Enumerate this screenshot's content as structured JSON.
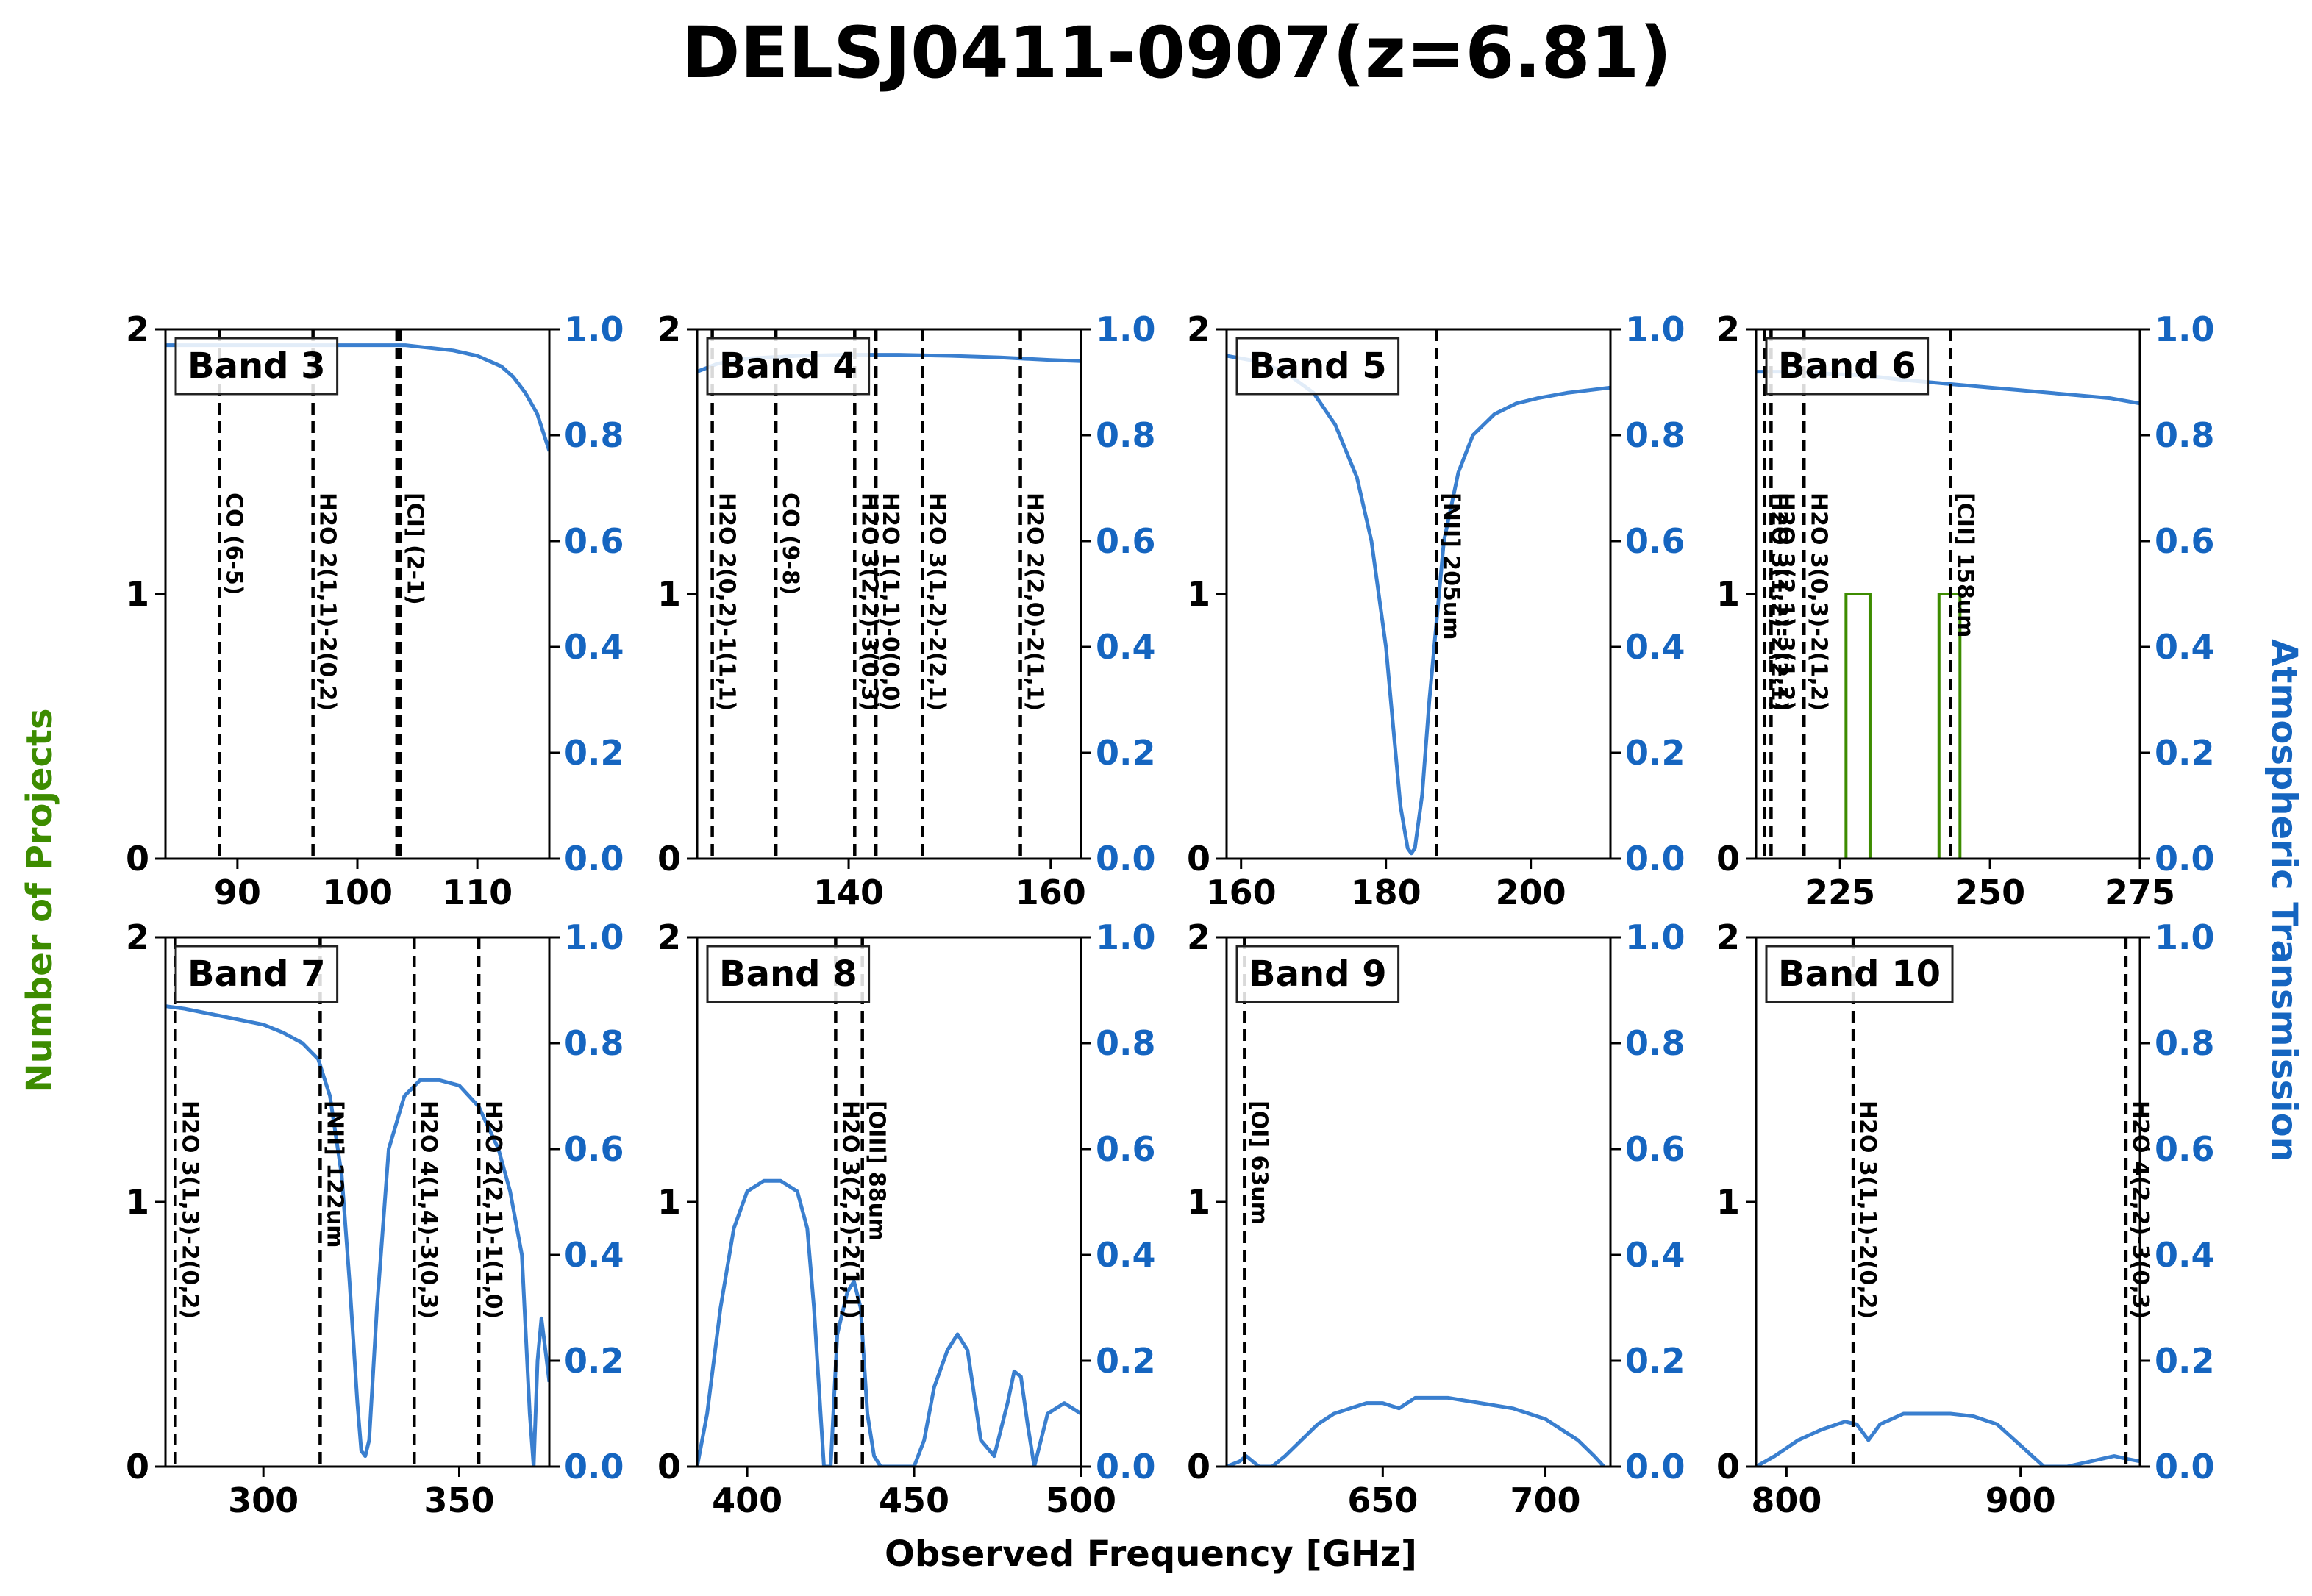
{
  "figure": {
    "title": "DELSJ0411-0907(z=6.81)",
    "xlabel": "Observed Frequency [GHz]",
    "ylabel_left": "Number of Projects",
    "ylabel_right": "Atmospheric Transmission"
  },
  "colors": {
    "transmission": "#3a7fcf",
    "projects": "#3d8c00",
    "right_axis": "#1565c0"
  },
  "chart_data": [
    {
      "type": "line",
      "band": "Band 3",
      "xlim": [
        84,
        116
      ],
      "xticks": [
        90,
        100,
        110
      ],
      "ylim_left": [
        0,
        2
      ],
      "ylim_right": [
        0,
        1
      ],
      "yticks_left": [
        0,
        1,
        2
      ],
      "yticks_right": [
        0.0,
        0.2,
        0.4,
        0.6,
        0.8,
        1.0
      ],
      "lines": [
        {
          "label": "CO (6-5)",
          "x": 88.5
        },
        {
          "label": "H2O 2(1,1)-2(0,2)",
          "x": 96.3
        },
        {
          "label": "[CI] (2-1)",
          "x": 103.6
        },
        {
          "label": "",
          "x": 103.3
        }
      ],
      "projects": [],
      "transmission": {
        "x": [
          84,
          88,
          92,
          96,
          100,
          104,
          106,
          108,
          110,
          112,
          113,
          114,
          115,
          116
        ],
        "y": [
          0.97,
          0.97,
          0.97,
          0.97,
          0.97,
          0.97,
          0.965,
          0.96,
          0.95,
          0.93,
          0.91,
          0.88,
          0.84,
          0.77
        ]
      }
    },
    {
      "type": "line",
      "band": "Band 4",
      "xlim": [
        125,
        163
      ],
      "xticks": [
        140,
        160
      ],
      "ylim_left": [
        0,
        2
      ],
      "ylim_right": [
        0,
        1
      ],
      "yticks_left": [
        0,
        1,
        2
      ],
      "yticks_right": [
        0.0,
        0.2,
        0.4,
        0.6,
        0.8,
        1.0
      ],
      "lines": [
        {
          "label": "H2O 2(0,2)-1(1,1)",
          "x": 126.5
        },
        {
          "label": "CO (9-8)",
          "x": 132.8
        },
        {
          "label": "H2O 3(2,2)-3(0,3)",
          "x": 140.6
        },
        {
          "label": "H2O 1(1,1)-0(0,0)",
          "x": 142.7
        },
        {
          "label": "H2O 3(1,2)-2(2,1)",
          "x": 147.3
        },
        {
          "label": "H2O 2(2,0)-2(1,1)",
          "x": 157.0
        }
      ],
      "projects": [],
      "transmission": {
        "x": [
          125,
          127,
          130,
          135,
          140,
          145,
          150,
          155,
          160,
          163
        ],
        "y": [
          0.92,
          0.935,
          0.945,
          0.95,
          0.952,
          0.952,
          0.95,
          0.947,
          0.942,
          0.94
        ]
      }
    },
    {
      "type": "line",
      "band": "Band 5",
      "xlim": [
        158,
        211
      ],
      "xticks": [
        160,
        180,
        200
      ],
      "ylim_left": [
        0,
        2
      ],
      "ylim_right": [
        0,
        1
      ],
      "yticks_left": [
        0,
        1,
        2
      ],
      "yticks_right": [
        0.0,
        0.2,
        0.4,
        0.6,
        0.8,
        1.0
      ],
      "lines": [
        {
          "label": "[NII] 205um",
          "x": 187.0
        }
      ],
      "projects": [],
      "transmission": {
        "x": [
          158,
          162,
          166,
          170,
          173,
          176,
          178,
          180,
          181,
          182,
          183,
          183.5,
          184,
          185,
          186,
          188,
          190,
          192,
          195,
          198,
          201,
          205,
          208,
          211
        ],
        "y": [
          0.95,
          0.94,
          0.92,
          0.88,
          0.82,
          0.72,
          0.6,
          0.4,
          0.25,
          0.1,
          0.02,
          0.01,
          0.02,
          0.12,
          0.3,
          0.6,
          0.73,
          0.8,
          0.84,
          0.86,
          0.87,
          0.88,
          0.885,
          0.89
        ]
      }
    },
    {
      "type": "line",
      "band": "Band 6",
      "xlim": [
        211,
        275
      ],
      "xticks": [
        225,
        250,
        275
      ],
      "ylim_left": [
        0,
        2
      ],
      "ylim_right": [
        0,
        1
      ],
      "yticks_left": [
        0,
        1,
        2
      ],
      "yticks_right": [
        0.0,
        0.2,
        0.4,
        0.6,
        0.8,
        1.0
      ],
      "lines": [
        {
          "label": "H2O 3(1,2)-2(2,1)",
          "x": 212.4
        },
        {
          "label": "H2O 3(2,1)-3(1,2)",
          "x": 213.5
        },
        {
          "label": "H2O 3(0,3)-2(1,2)",
          "x": 219.0
        },
        {
          "label": "[CII] 158um",
          "x": 243.4
        }
      ],
      "projects": [
        {
          "x0": 226,
          "x1": 230,
          "value": 1
        },
        {
          "x0": 241.5,
          "x1": 245,
          "value": 1
        }
      ],
      "transmission": {
        "x": [
          211,
          215,
          220,
          225,
          230,
          235,
          240,
          245,
          250,
          255,
          260,
          265,
          270,
          275
        ],
        "y": [
          0.92,
          0.92,
          0.918,
          0.915,
          0.912,
          0.905,
          0.9,
          0.895,
          0.89,
          0.885,
          0.88,
          0.875,
          0.87,
          0.86
        ]
      }
    },
    {
      "type": "line",
      "band": "Band 7",
      "xlim": [
        275,
        373
      ],
      "xticks": [
        300,
        350
      ],
      "ylim_left": [
        0,
        2
      ],
      "ylim_right": [
        0,
        1
      ],
      "yticks_left": [
        0,
        1,
        2
      ],
      "yticks_right": [
        0.0,
        0.2,
        0.4,
        0.6,
        0.8,
        1.0
      ],
      "lines": [
        {
          "label": "H2O 3(1,3)-2(0,2)",
          "x": 277.5
        },
        {
          "label": "[NII] 122um",
          "x": 314.5
        },
        {
          "label": "H2O 4(1,4)-3(0,3)",
          "x": 338.5
        },
        {
          "label": "H2O 2(2,1)-1(1,0)",
          "x": 355.0
        }
      ],
      "projects": [],
      "transmission": {
        "x": [
          275,
          280,
          290,
          300,
          305,
          310,
          314,
          317,
          320,
          322,
          324,
          325,
          326,
          327,
          329,
          332,
          336,
          340,
          345,
          350,
          355,
          360,
          363,
          366,
          368,
          369,
          370,
          371,
          372,
          373
        ],
        "y": [
          0.87,
          0.865,
          0.85,
          0.835,
          0.82,
          0.8,
          0.77,
          0.7,
          0.55,
          0.35,
          0.12,
          0.03,
          0.02,
          0.05,
          0.3,
          0.6,
          0.7,
          0.73,
          0.73,
          0.72,
          0.68,
          0.6,
          0.52,
          0.4,
          0.1,
          0.0,
          0.2,
          0.28,
          0.22,
          0.16
        ]
      }
    },
    {
      "type": "line",
      "band": "Band 8",
      "xlim": [
        385,
        500
      ],
      "xticks": [
        400,
        450,
        500
      ],
      "ylim_left": [
        0,
        2
      ],
      "ylim_right": [
        0,
        1
      ],
      "yticks_left": [
        0,
        1,
        2
      ],
      "yticks_right": [
        0.0,
        0.2,
        0.4,
        0.6,
        0.8,
        1.0
      ],
      "lines": [
        {
          "label": "H2O 3(2,2)-2(1,1)",
          "x": 426.5
        },
        {
          "label": "[OIII] 88um",
          "x": 434.5
        }
      ],
      "projects": [],
      "transmission": {
        "x": [
          385,
          388,
          392,
          396,
          400,
          405,
          410,
          415,
          418,
          420,
          422,
          423,
          425,
          427,
          430,
          432,
          434,
          436,
          438,
          440,
          445,
          450,
          453,
          456,
          460,
          463,
          466,
          470,
          474,
          478,
          480,
          482,
          484,
          486,
          488,
          490,
          495,
          500
        ],
        "y": [
          0.0,
          0.1,
          0.3,
          0.45,
          0.52,
          0.54,
          0.54,
          0.52,
          0.45,
          0.3,
          0.1,
          0.0,
          0.0,
          0.25,
          0.33,
          0.35,
          0.3,
          0.1,
          0.02,
          0.0,
          0.0,
          0.0,
          0.05,
          0.15,
          0.22,
          0.25,
          0.22,
          0.05,
          0.02,
          0.12,
          0.18,
          0.17,
          0.08,
          0.0,
          0.05,
          0.1,
          0.12,
          0.1
        ]
      }
    },
    {
      "type": "line",
      "band": "Band 9",
      "xlim": [
        602,
        720
      ],
      "xticks": [
        650,
        700
      ],
      "ylim_left": [
        0,
        2
      ],
      "ylim_right": [
        0,
        1
      ],
      "yticks_left": [
        0,
        1,
        2
      ],
      "yticks_right": [
        0.0,
        0.2,
        0.4,
        0.6,
        0.8,
        1.0
      ],
      "lines": [
        {
          "label": "[OI] 63um",
          "x": 607.5
        }
      ],
      "projects": [],
      "transmission": {
        "x": [
          602,
          606,
          608,
          610,
          612,
          616,
          620,
          625,
          630,
          635,
          640,
          645,
          650,
          655,
          660,
          665,
          670,
          675,
          680,
          685,
          690,
          695,
          700,
          705,
          710,
          715,
          718
        ],
        "y": [
          0.0,
          0.01,
          0.02,
          0.01,
          0.0,
          0.0,
          0.02,
          0.05,
          0.08,
          0.1,
          0.11,
          0.12,
          0.12,
          0.11,
          0.13,
          0.13,
          0.13,
          0.125,
          0.12,
          0.115,
          0.11,
          0.1,
          0.09,
          0.07,
          0.05,
          0.02,
          0.0
        ]
      }
    },
    {
      "type": "line",
      "band": "Band 10",
      "xlim": [
        787,
        951
      ],
      "xticks": [
        800,
        900
      ],
      "ylim_left": [
        0,
        2
      ],
      "ylim_right": [
        0,
        1
      ],
      "yticks_left": [
        0,
        1,
        2
      ],
      "yticks_right": [
        0.0,
        0.2,
        0.4,
        0.6,
        0.8,
        1.0
      ],
      "lines": [
        {
          "label": "H2O 3(1,1)-2(0,2)",
          "x": 828.5
        },
        {
          "label": "H2O 4(2,2)-3(0,3)",
          "x": 945.0
        }
      ],
      "projects": [],
      "transmission": {
        "x": [
          787,
          795,
          805,
          815,
          825,
          830,
          835,
          840,
          845,
          850,
          860,
          870,
          880,
          890,
          895,
          900,
          905,
          910,
          915,
          920,
          930,
          940,
          945,
          951
        ],
        "y": [
          0.0,
          0.02,
          0.05,
          0.07,
          0.085,
          0.08,
          0.05,
          0.08,
          0.09,
          0.1,
          0.1,
          0.1,
          0.095,
          0.08,
          0.06,
          0.04,
          0.02,
          0.0,
          0.0,
          0.0,
          0.01,
          0.02,
          0.015,
          0.01
        ]
      }
    }
  ]
}
